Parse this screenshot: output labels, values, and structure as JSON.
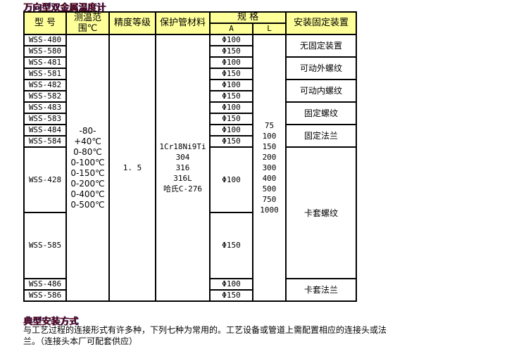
{
  "title": "万向型双金属温度计",
  "headers": {
    "model": "型 号",
    "range": "测温范围℃",
    "accuracy": "精度等级",
    "material": "保护管材料",
    "spec": "规 格",
    "a": "A",
    "l": "L",
    "install": "安装固定装置"
  },
  "rows": [
    {
      "model": "WSS-480",
      "a": "Φ100"
    },
    {
      "model": "WSS-580",
      "a": "Φ150"
    },
    {
      "model": "WSS-481",
      "a": "Φ100"
    },
    {
      "model": "WSS-581",
      "a": "Φ150"
    },
    {
      "model": "WSS-482",
      "a": "Φ100"
    },
    {
      "model": "WSS-582",
      "a": "Φ150"
    },
    {
      "model": "WSS-483",
      "a": "Φ100"
    },
    {
      "model": "WSS-583",
      "a": "Φ150"
    },
    {
      "model": "WSS-484",
      "a": "Φ100"
    },
    {
      "model": "WSS-584",
      "a": "Φ150"
    },
    {
      "model": "WSS-428",
      "a": "Φ100"
    },
    {
      "model": "WSS-585",
      "a": "Φ150"
    },
    {
      "model": "WSS-486",
      "a": "Φ100"
    },
    {
      "model": "WSS-586",
      "a": "Φ150"
    }
  ],
  "ranges": [
    "-80-+40℃",
    "0-80℃",
    "0-100℃",
    "0-150℃",
    "0-200℃",
    "0-400℃",
    "0-500℃"
  ],
  "accuracy": "1. 5",
  "materials": [
    "1Cr18Ni9Ti",
    "304",
    "316",
    "316L",
    "哈氏C-276"
  ],
  "lengths": [
    "75",
    "100",
    "150",
    "200",
    "300",
    "400",
    "500",
    "750",
    "1000"
  ],
  "installs": [
    "无固定装置",
    "可动外螺纹",
    "可动内螺纹",
    "固定螺纹",
    "固定法兰",
    "卡套螺纹",
    "卡套法兰"
  ],
  "section_title": "典型安装方式",
  "description": "与工艺过程的连接形式有许多种，下列七种为常用的。工艺设备或管道上需配置相应的连接头或法兰。（连接头本厂可配套供应）"
}
